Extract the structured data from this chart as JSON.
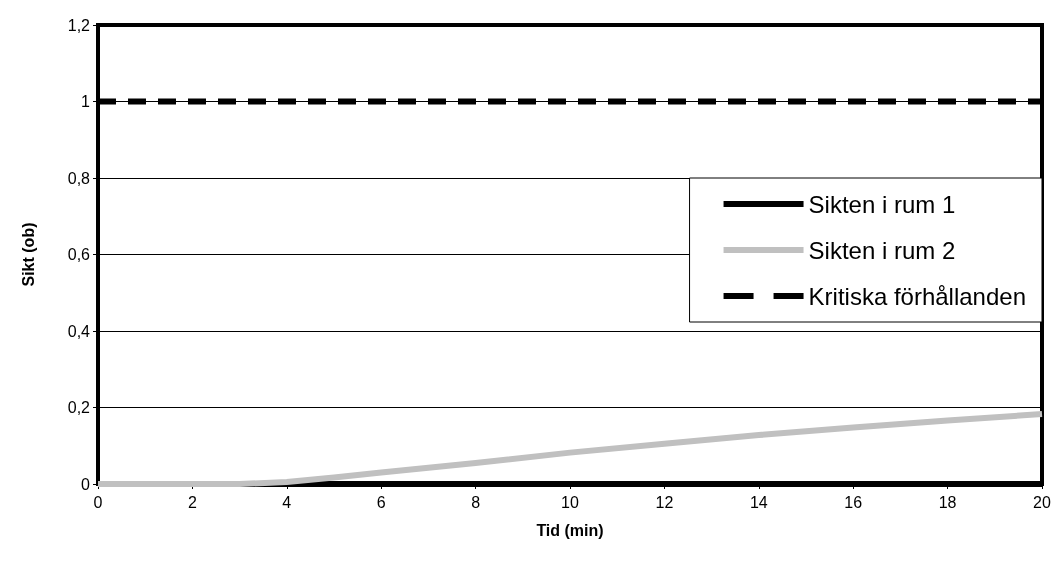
{
  "chart_data": {
    "type": "line",
    "xlabel": "Tid (min)",
    "ylabel": "Sikt (ob)",
    "x": [
      0,
      2,
      3,
      4,
      5,
      6,
      8,
      10,
      12,
      14,
      16,
      18,
      20
    ],
    "series": [
      {
        "name": "Sikten i rum 1",
        "color": "#000000",
        "values": [
          0,
          0,
          0,
          0,
          0,
          0,
          0,
          0,
          0,
          0,
          0,
          0,
          0
        ]
      },
      {
        "name": "Sikten i rum 2",
        "color": "#c0c0c0",
        "values": [
          0,
          0,
          0,
          0.005,
          0.017,
          0.03,
          0.055,
          0.082,
          0.105,
          0.128,
          0.148,
          0.166,
          0.183
        ]
      },
      {
        "name": "Kritiska förhållanden",
        "color": "#000000",
        "line_style": "dashed",
        "values": [
          1,
          1,
          1,
          1,
          1,
          1,
          1,
          1,
          1,
          1,
          1,
          1,
          1
        ]
      }
    ],
    "xlim": [
      0,
      20
    ],
    "xticks": [
      0,
      2,
      4,
      6,
      8,
      10,
      12,
      14,
      16,
      18,
      20
    ],
    "ylim": [
      0,
      1.2
    ],
    "yticks": [
      0,
      {
        "value": 0.2,
        "label": "0,2"
      },
      {
        "value": 0.4,
        "label": "0,4"
      },
      {
        "value": 0.6,
        "label": "0,6"
      },
      {
        "value": 0.8,
        "label": "0,8"
      },
      1,
      {
        "value": 1.2,
        "label": "1,2"
      }
    ],
    "grid": "y",
    "legend": "right",
    "marker": "none"
  }
}
